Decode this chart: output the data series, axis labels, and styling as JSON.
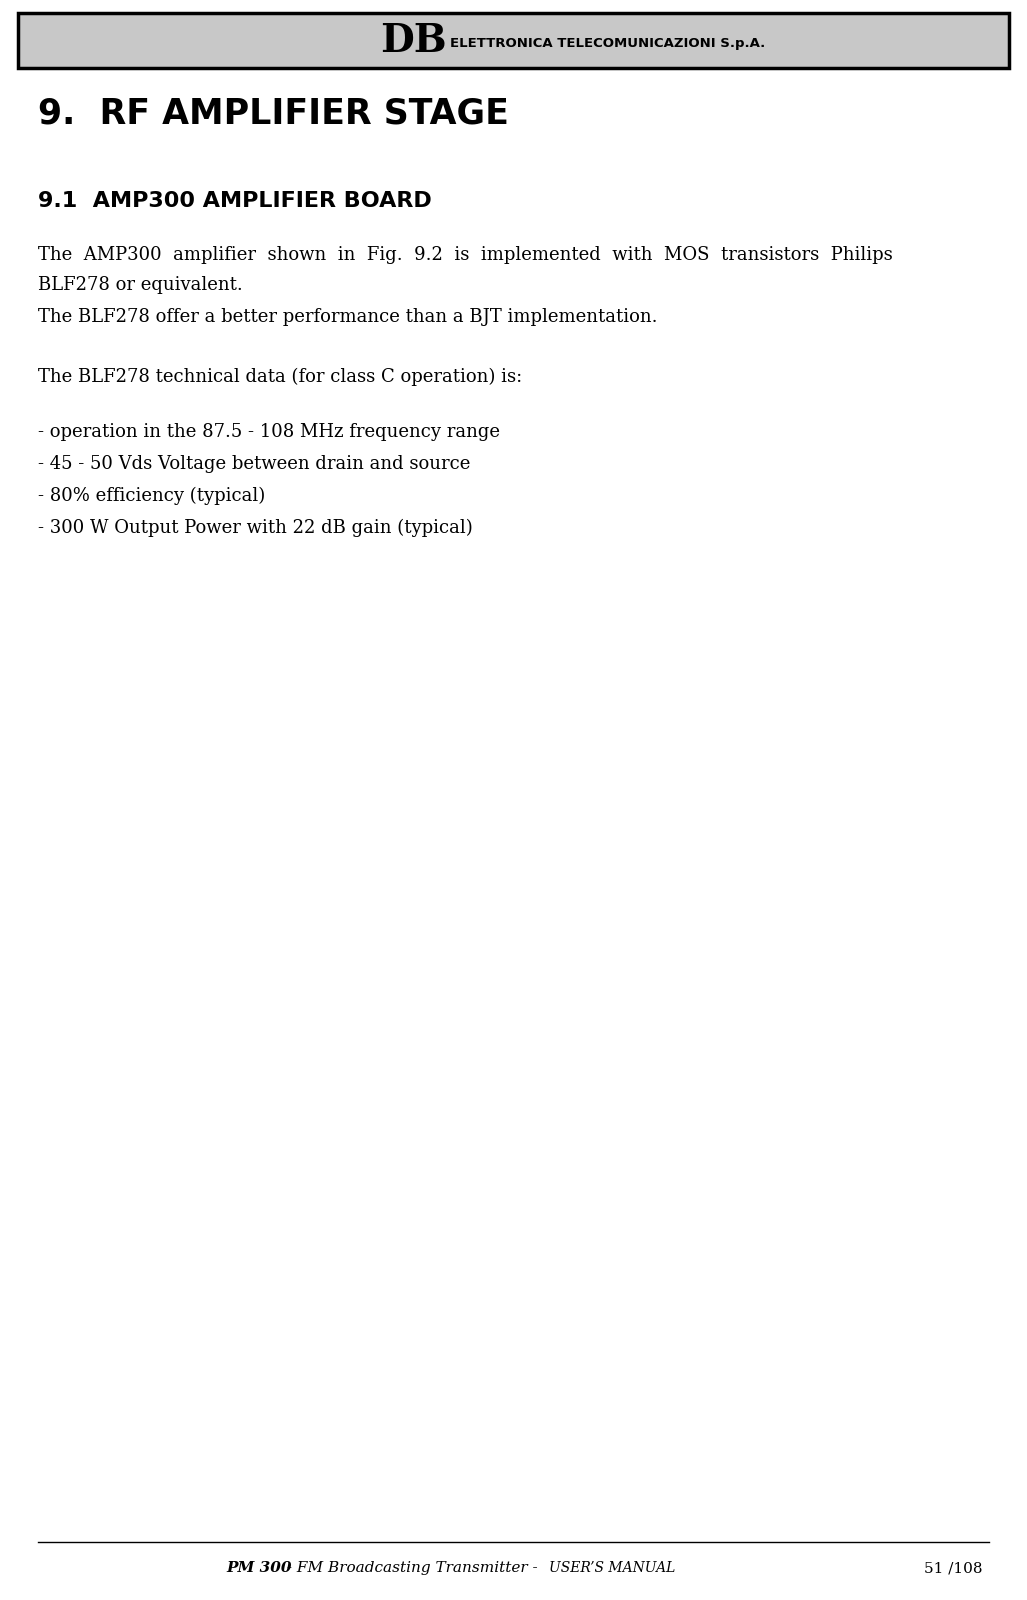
{
  "header_bg": "#c8c8c8",
  "header_border": "#000000",
  "header_db_text": "DB",
  "header_sub_text": "ELETTRONICA TELECOMUNICAZIONI S.p.A.",
  "page_bg": "#ffffff",
  "title_h1": "9.  RF AMPLIFIER STAGE",
  "title_h2": "9.1  AMP300 AMPLIFIER BOARD",
  "para1_line1": "The  AMP300  amplifier  shown  in  Fig.  9.2  is  implemented  with  MOS  transistors  Philips",
  "para1_line2": "BLF278 or equivalent.",
  "para2": "The BLF278 offer a better performance than a BJT implementation.",
  "para3": "The BLF278 technical data (for class C operation) is:",
  "bullet1": "- operation in the 87.5 - 108 MHz frequency range",
  "bullet2": "- 45 - 50 Vds Voltage between drain and source",
  "bullet3": "- 80% efficiency (typical)",
  "bullet4": "- 300 W Output Power with 22 dB gain (typical)",
  "footer_pm300": "PM 300",
  "footer_mid": " - FM Broadcasting Transmitter - ",
  "footer_users_manual": "USER’S MANUAL",
  "footer_page": "51 /108",
  "text_color": "#000000",
  "footer_color": "#000000",
  "fig_width": 10.27,
  "fig_height": 16.0,
  "dpi": 100
}
